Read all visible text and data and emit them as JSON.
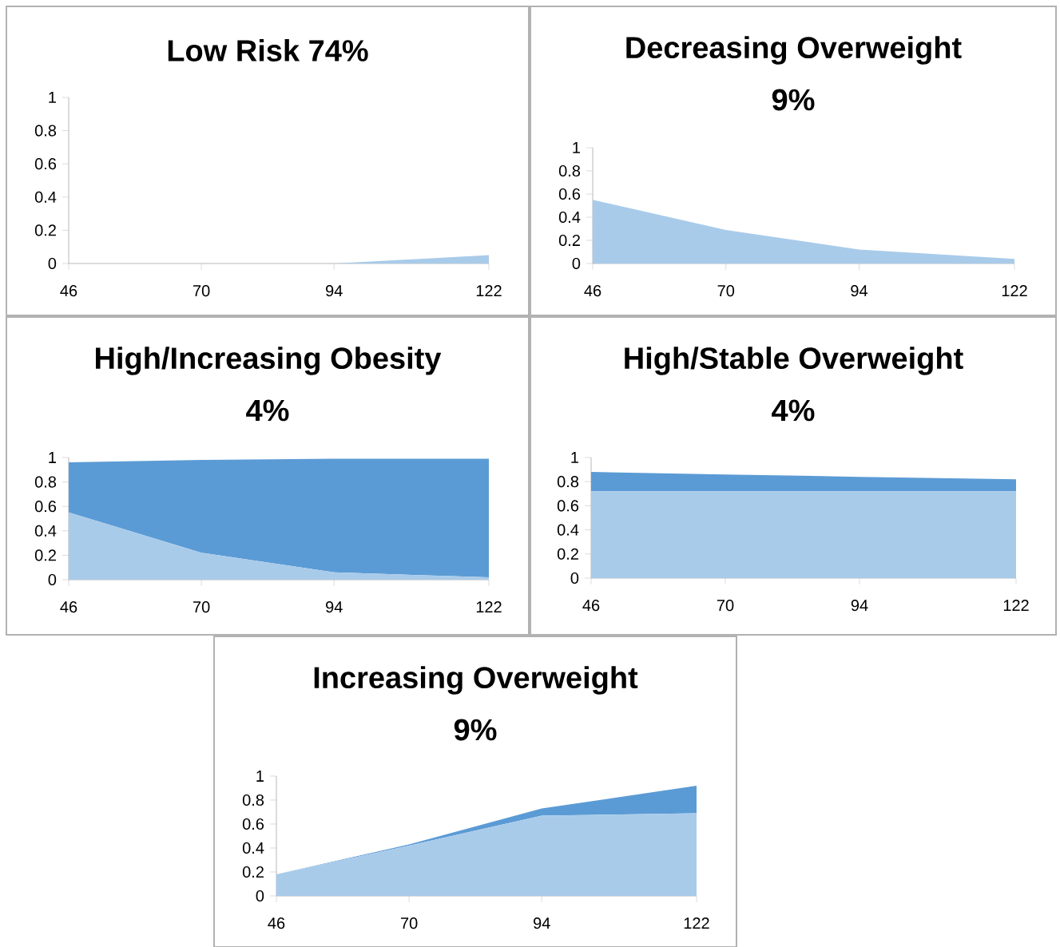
{
  "chart_data": [
    {
      "type": "area",
      "stacked": true,
      "title": "Low Risk  74%",
      "x": [
        46,
        70,
        94,
        122
      ],
      "xlim": [
        46,
        122
      ],
      "xticks": [
        46,
        70,
        94,
        122
      ],
      "ylim": [
        0,
        1
      ],
      "yticks": [
        0,
        0.2,
        0.4,
        0.6,
        0.8,
        1
      ],
      "series": [
        {
          "color": "#a9cbea",
          "values": [
            0,
            0,
            0,
            0.05
          ]
        }
      ]
    },
    {
      "type": "area",
      "stacked": true,
      "title": "Decreasing Overweight",
      "subtitle": "9%",
      "x": [
        46,
        70,
        94,
        122
      ],
      "xlim": [
        46,
        122
      ],
      "xticks": [
        46,
        70,
        94,
        122
      ],
      "ylim": [
        0,
        1
      ],
      "yticks": [
        0,
        0.2,
        0.4,
        0.6,
        0.8,
        1
      ],
      "series": [
        {
          "color": "#a9cbea",
          "values": [
            0.55,
            0.29,
            0.12,
            0.04
          ]
        }
      ]
    },
    {
      "type": "area",
      "stacked": true,
      "title": "High/Increasing Obesity",
      "subtitle": "4%",
      "x": [
        46,
        70,
        94,
        122
      ],
      "xlim": [
        46,
        122
      ],
      "xticks": [
        46,
        70,
        94,
        122
      ],
      "ylim": [
        0,
        1
      ],
      "yticks": [
        0,
        0.2,
        0.4,
        0.6,
        0.8,
        1
      ],
      "series": [
        {
          "color": "#a9cbea",
          "values": [
            0.55,
            0.22,
            0.06,
            0.02
          ]
        },
        {
          "color": "#5b9bd5",
          "values": [
            0.41,
            0.76,
            0.93,
            0.97
          ]
        }
      ]
    },
    {
      "type": "area",
      "stacked": true,
      "title": "High/Stable Overweight",
      "subtitle": "4%",
      "x": [
        46,
        70,
        94,
        122
      ],
      "xlim": [
        46,
        122
      ],
      "xticks": [
        46,
        70,
        94,
        122
      ],
      "ylim": [
        0,
        1
      ],
      "yticks": [
        0,
        0.2,
        0.4,
        0.6,
        0.8,
        1
      ],
      "series": [
        {
          "color": "#a9cbea",
          "values": [
            0.72,
            0.72,
            0.72,
            0.72
          ]
        },
        {
          "color": "#5b9bd5",
          "values": [
            0.16,
            0.14,
            0.12,
            0.1
          ]
        }
      ]
    },
    {
      "type": "area",
      "stacked": true,
      "title": "Increasing Overweight",
      "subtitle": "9%",
      "x": [
        46,
        70,
        94,
        122
      ],
      "xlim": [
        46,
        122
      ],
      "xticks": [
        46,
        70,
        94,
        122
      ],
      "ylim": [
        0,
        1
      ],
      "yticks": [
        0,
        0.2,
        0.4,
        0.6,
        0.8,
        1
      ],
      "series": [
        {
          "color": "#a9cbea",
          "values": [
            0.18,
            0.42,
            0.67,
            0.69
          ]
        },
        {
          "color": "#5b9bd5",
          "values": [
            0,
            0.01,
            0.06,
            0.23
          ]
        }
      ]
    }
  ]
}
